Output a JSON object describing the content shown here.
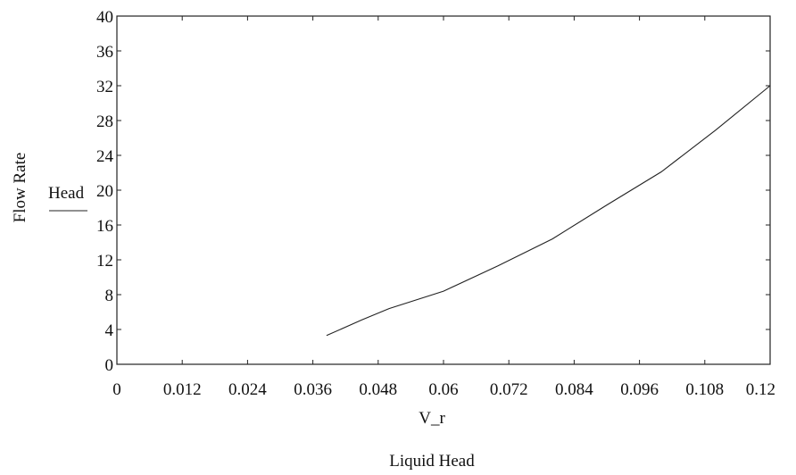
{
  "chart_data": {
    "type": "line",
    "title": "",
    "xlabel": "V_r",
    "caption": "Liquid Head",
    "ylabel": "Flow Rate",
    "legend": [
      {
        "name": "Head",
        "placement": "left-of-axis"
      }
    ],
    "xlim": [
      0,
      0.12
    ],
    "ylim": [
      0,
      40
    ],
    "x_ticks": [
      "0",
      "0.012",
      "0.024",
      "0.036",
      "0.048",
      "0.06",
      "0.072",
      "0.084",
      "0.096",
      "0.108",
      "0.12"
    ],
    "y_ticks": [
      "0",
      "4",
      "8",
      "12",
      "16",
      "20",
      "24",
      "28",
      "32",
      "36",
      "40"
    ],
    "grid": false,
    "series": [
      {
        "name": "Head",
        "color": "#222222",
        "x": [
          0.0385,
          0.045,
          0.05,
          0.06,
          0.07,
          0.08,
          0.09,
          0.1,
          0.11,
          0.12
        ],
        "y": [
          3.3,
          5.1,
          6.4,
          8.4,
          11.3,
          14.4,
          18.3,
          22.1,
          26.9,
          32.0
        ]
      }
    ]
  }
}
